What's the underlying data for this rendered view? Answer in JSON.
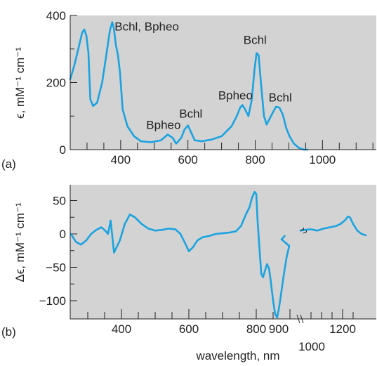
{
  "chart_data": [
    {
      "panel_label": "(a)",
      "type": "line",
      "ylabel": "ϵ, mM⁻¹ cm⁻¹",
      "xlim": [
        250,
        1160
      ],
      "ylim": [
        0,
        400
      ],
      "yticks": [
        0,
        200,
        400
      ],
      "xticks": [
        400,
        600,
        800,
        1000
      ],
      "annotations": [
        {
          "text": "Bchl, Bpheo",
          "x": 382,
          "y": 355
        },
        {
          "text": "Bpheo",
          "x": 476,
          "y": 62
        },
        {
          "text": "Bchl",
          "x": 574,
          "y": 95
        },
        {
          "text": "Bpheo",
          "x": 690,
          "y": 150
        },
        {
          "text": "Bchl",
          "x": 765,
          "y": 315
        },
        {
          "text": "Bchl",
          "x": 840,
          "y": 143
        }
      ],
      "x": [
        250,
        262,
        274,
        286,
        292,
        298,
        304,
        310,
        318,
        330,
        345,
        360,
        368,
        375,
        380,
        386,
        392,
        398,
        406,
        420,
        440,
        460,
        490,
        520,
        540,
        555,
        565,
        580,
        590,
        600,
        610,
        620,
        640,
        670,
        700,
        730,
        745,
        755,
        762,
        770,
        780,
        790,
        798,
        804,
        810,
        818,
        826,
        834,
        842,
        852,
        862,
        872,
        882,
        892,
        902,
        915,
        930,
        945,
        955
      ],
      "values": [
        210,
        250,
        300,
        350,
        358,
        340,
        290,
        150,
        130,
        140,
        200,
        300,
        355,
        380,
        360,
        310,
        282,
        230,
        120,
        70,
        40,
        25,
        22,
        28,
        45,
        35,
        18,
        35,
        60,
        72,
        50,
        28,
        25,
        30,
        40,
        70,
        100,
        125,
        133,
        120,
        100,
        150,
        240,
        288,
        282,
        190,
        100,
        75,
        90,
        110,
        128,
        125,
        105,
        65,
        40,
        18,
        5,
        0,
        0
      ]
    },
    {
      "panel_label": "(b)",
      "type": "line",
      "ylabel": "Δϵ, mM⁻¹ cm⁻¹",
      "xlabel": "wavelength, nm",
      "ylim": [
        -125,
        70
      ],
      "yticks": [
        -100,
        -50,
        0,
        50
      ],
      "x_tick_labels": [
        "400",
        "600",
        "800",
        "900",
        "1000",
        "1200"
      ],
      "axis_break": "900-1000",
      "x": [
        250,
        265,
        280,
        295,
        310,
        325,
        340,
        352,
        360,
        368,
        378,
        395,
        410,
        425,
        440,
        460,
        480,
        500,
        520,
        540,
        560,
        575,
        590,
        600,
        612,
        625,
        640,
        660,
        680,
        700,
        720,
        740,
        755,
        770,
        780,
        788,
        795,
        800,
        804,
        810,
        815,
        820,
        826,
        832,
        838,
        843,
        850,
        856,
        862,
        868,
        875,
        882,
        890,
        898,
        910,
        925
      ],
      "values": [
        0,
        -12,
        -16,
        -10,
        0,
        6,
        10,
        5,
        0,
        20,
        -28,
        -10,
        15,
        29,
        25,
        15,
        8,
        5,
        6,
        8,
        7,
        0,
        -15,
        -26,
        -20,
        -10,
        -5,
        -3,
        0,
        1,
        2,
        4,
        12,
        30,
        40,
        55,
        63,
        60,
        20,
        -25,
        -60,
        -65,
        -55,
        -45,
        -52,
        -70,
        -100,
        -120,
        -125,
        -110,
        -85,
        -60,
        -35,
        -18,
        -8,
        -3
      ],
      "x_after_break": [
        1000,
        1020,
        1050,
        1080,
        1110,
        1140,
        1170,
        1190,
        1210,
        1225,
        1235,
        1250,
        1270,
        1290,
        1310
      ],
      "values_after_break": [
        5,
        6,
        7,
        5,
        8,
        10,
        12,
        15,
        20,
        26,
        25,
        15,
        5,
        0,
        -2
      ]
    }
  ]
}
